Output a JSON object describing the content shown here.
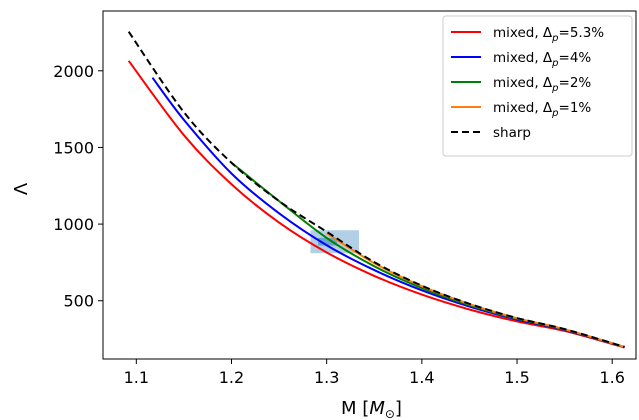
{
  "chart_data": {
    "type": "line",
    "title": "",
    "xlabel": "M [M_⊙]",
    "xlabel_parts": {
      "prefix": "M [",
      "var": "M",
      "sub": "⊙",
      "suffix": "]"
    },
    "ylabel": "Λ",
    "xlim": [
      1.065,
      1.625
    ],
    "ylim": [
      120,
      2390
    ],
    "xticks": [
      1.1,
      1.2,
      1.3,
      1.4,
      1.5,
      1.6
    ],
    "xtick_labels": [
      "1.1",
      "1.2",
      "1.3",
      "1.4",
      "1.5",
      "1.6"
    ],
    "yticks": [
      500,
      1000,
      1500,
      2000
    ],
    "ytick_labels": [
      "500",
      "1000",
      "1500",
      "2000"
    ],
    "grid": false,
    "legend_position": "top-right",
    "series": [
      {
        "name": "mixed, Δp=5.3%",
        "legend_parts": {
          "prefix": "mixed, Δ",
          "sub": "p",
          "suffix": "=5.3%"
        },
        "color": "#ff0000",
        "dash": "solid",
        "x": [
          1.092,
          1.15,
          1.2,
          1.25,
          1.3,
          1.35,
          1.4,
          1.45,
          1.5,
          1.55,
          1.613
        ],
        "y": [
          2065,
          1580,
          1260,
          1010,
          815,
          662,
          540,
          443,
          365,
          303,
          195
        ]
      },
      {
        "name": "mixed, Δp=4%",
        "legend_parts": {
          "prefix": "mixed, Δ",
          "sub": "p",
          "suffix": "=4%"
        },
        "color": "#0000ff",
        "dash": "solid",
        "x": [
          1.117,
          1.15,
          1.2,
          1.25,
          1.3,
          1.35,
          1.4,
          1.45,
          1.5,
          1.55,
          1.613
        ],
        "y": [
          1955,
          1680,
          1330,
          1070,
          862,
          700,
          568,
          462,
          377,
          309,
          197
        ]
      },
      {
        "name": "mixed, Δp=2%",
        "legend_parts": {
          "prefix": "mixed, Δ",
          "sub": "p",
          "suffix": "=2%"
        },
        "color": "#008000",
        "dash": "solid",
        "x": [
          1.2,
          1.25,
          1.3,
          1.35,
          1.4,
          1.45,
          1.5,
          1.55,
          1.613
        ],
        "y": [
          1400,
          1150,
          910,
          725,
          583,
          471,
          382,
          312,
          198
        ]
      },
      {
        "name": "mixed, Δp=1%",
        "legend_parts": {
          "prefix": "mixed, Δ",
          "sub": "p",
          "suffix": "=1%"
        },
        "color": "#ff7f0e",
        "dash": "solid",
        "x": [
          1.3,
          1.35,
          1.4,
          1.45,
          1.5,
          1.55,
          1.613
        ],
        "y": [
          940,
          745,
          595,
          478,
          386,
          314,
          198
        ]
      },
      {
        "name": "sharp",
        "legend_parts": {
          "prefix": "sharp",
          "sub": "",
          "suffix": ""
        },
        "color": "#000000",
        "dash": "dashed",
        "x": [
          1.092,
          1.15,
          1.2,
          1.25,
          1.3,
          1.35,
          1.4,
          1.45,
          1.5,
          1.55,
          1.613
        ],
        "y": [
          2255,
          1730,
          1400,
          1150,
          950,
          752,
          598,
          480,
          387,
          315,
          199
        ]
      }
    ],
    "shaded_regions": [
      {
        "x": [
          1.283,
          1.334
        ],
        "y": [
          810,
          960
        ],
        "color": "#1f77b4",
        "opacity": 0.35
      },
      {
        "x": [
          1.291,
          1.311
        ],
        "y": [
          860,
          910
        ],
        "color": "#1f77b4",
        "opacity": 0.5
      }
    ]
  }
}
